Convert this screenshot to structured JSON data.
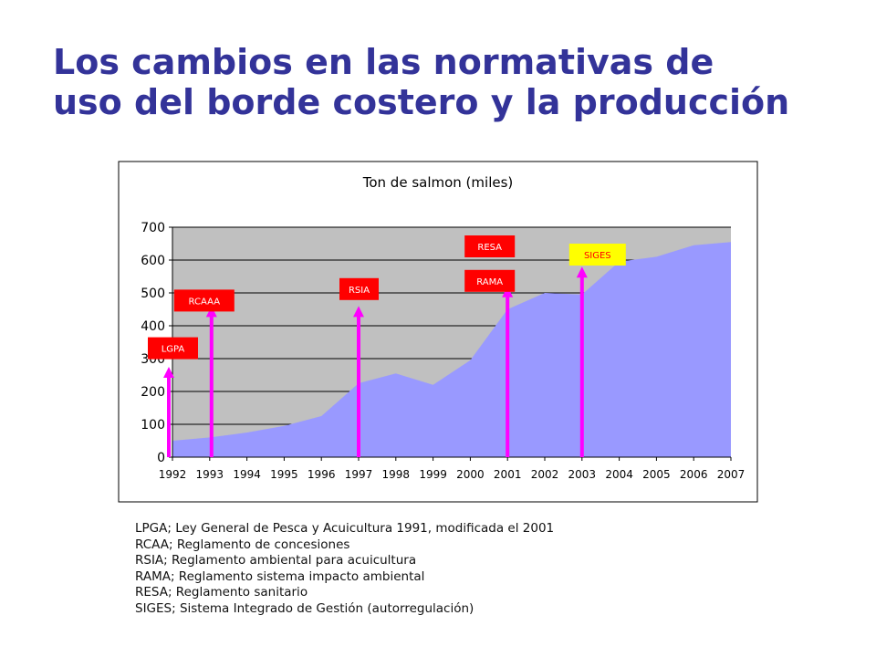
{
  "slide": {
    "title_lines": [
      "Los cambios en las normativas de",
      "uso del borde costero y la producción"
    ]
  },
  "chart_data": {
    "type": "area",
    "title": "Ton de salmon (miles)",
    "categories": [
      "1992",
      "1993",
      "1994",
      "1995",
      "1996",
      "1997",
      "1998",
      "1999",
      "2000",
      "2001",
      "2002",
      "2003",
      "2004",
      "2005",
      "2006",
      "2007"
    ],
    "series": [
      {
        "name": "Ton de salmon (miles)",
        "values": [
          50,
          60,
          75,
          95,
          125,
          225,
          255,
          220,
          295,
          450,
          500,
          495,
          595,
          610,
          645,
          655
        ]
      }
    ],
    "y_ticks": [
      "0",
      "100",
      "200",
      "300",
      "400",
      "500",
      "600",
      "700"
    ],
    "ylim": [
      0,
      700
    ],
    "xlabel": "",
    "ylabel": "",
    "grid": true,
    "colors": {
      "area": "#9999ff",
      "plot_bg": "#c0c0c0",
      "arrow": "#ff00ff",
      "label_red": "#ff0000",
      "label_yellow": "#ffff00",
      "gridline": "#000000"
    },
    "annotations": [
      {
        "label": "LGPA",
        "year": "1992",
        "arrow_top_value": 275,
        "box_value": 365,
        "box_style": "red"
      },
      {
        "label": "RCAAA",
        "year": "1993",
        "arrow_top_value": 460,
        "box_value": 510,
        "box_style": "red"
      },
      {
        "label": "RSIA",
        "year": "1997",
        "arrow_top_value": 460,
        "box_value": 545,
        "box_style": "red"
      },
      {
        "label": "RAMA",
        "year": "2001",
        "arrow_top_value": 520,
        "box_value": 570,
        "box_style": "red"
      },
      {
        "label": "RESA",
        "year": "2001",
        "arrow_top_value": null,
        "box_value": 675,
        "box_style": "red"
      },
      {
        "label": "SIGES",
        "year": "2003",
        "arrow_top_value": 580,
        "box_value": 650,
        "box_style": "yellow"
      }
    ]
  },
  "legend": {
    "lines": [
      "LPGA; Ley General de Pesca y Acuicultura 1991, modificada el 2001",
      "RCAA; Reglamento de concesiones",
      "RSIA;  Reglamento ambiental para acuicultura",
      "RAMA; Reglamento sistema impacto ambiental",
      "RESA;   Reglamento sanitario",
      "SIGES; Sistema Integrado de Gestión (autorregulación)"
    ]
  }
}
